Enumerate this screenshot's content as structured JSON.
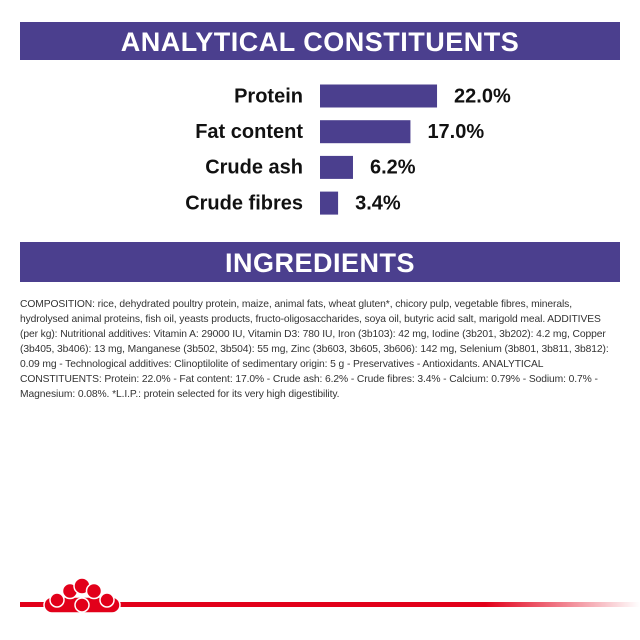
{
  "chart_data": {
    "type": "bar",
    "orientation": "horizontal",
    "title": "ANALYTICAL CONSTITUENTS",
    "categories": [
      "Protein",
      "Fat content",
      "Crude ash",
      "Crude fibres"
    ],
    "values": [
      22.0,
      17.0,
      6.2,
      3.4
    ],
    "value_labels": [
      "22.0%",
      "17.0%",
      "6.2%",
      "3.4%"
    ],
    "color": "#4b3f8e"
  },
  "ingredients": {
    "title": "INGREDIENTS",
    "text": "COMPOSITION: rice, dehydrated poultry protein, maize, animal fats, wheat gluten*, chicory pulp, vegetable fibres, minerals, hydrolysed animal proteins, fish oil, yeasts products, fructo-oligosaccharides, soya oil, butyric acid salt, marigold meal. ADDITIVES (per kg): Nutritional additives: Vitamin A: 29000 IU, Vitamin D3: 780 IU, Iron (3b103): 42 mg, Iodine (3b201, 3b202): 4.2 mg, Copper (3b405, 3b406): 13 mg, Manganese (3b502, 3b504): 55 mg, Zinc (3b603, 3b605, 3b606): 142 mg, Selenium (3b801, 3b811, 3b812): 0.09 mg - Technological additives: Clinoptilolite of sedimentary origin: 5 g - Preservatives - Antioxidants. ANALYTICAL CONSTITUENTS: Protein: 22.0% - Fat content: 17.0% - Crude ash: 6.2% - Crude fibres: 3.4% - Calcium: 0.79% - Sodium: 0.7% - Magnesium: 0.08%. *L.I.P.: protein selected for its very high digestibility."
  }
}
